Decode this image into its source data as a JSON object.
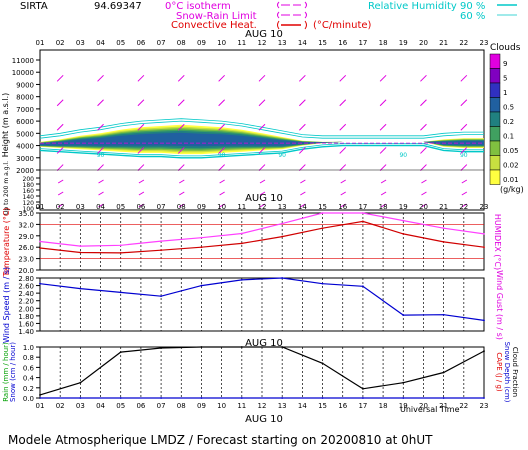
{
  "header": {
    "station": "SIRTA",
    "code": "94.69347",
    "isotherm_label": "0°C isotherm",
    "snowrain_label": "Snow-Rain Limit",
    "convective_label": "Convective Heat.",
    "unit_label": "(°C/minute)",
    "rh_label": "Relative Humidity",
    "rh_90": "90 %",
    "rh_60": "60 %",
    "colors": {
      "isotherm": "#e000e0",
      "rh": "#00c8c8",
      "convective": "#e00000"
    }
  },
  "footer": {
    "universal_time": "Universal Time",
    "model_line": "Modele Atmospherique LMDZ / Forecast starting on 20200810 at 0hUT"
  },
  "chart_data": [
    {
      "type": "heatmap",
      "name": "clouds",
      "date_label": "AUG 10",
      "x_ticks": [
        "01",
        "02",
        "03",
        "04",
        "05",
        "06",
        "07",
        "08",
        "09",
        "10",
        "11",
        "12",
        "13",
        "14",
        "15",
        "16",
        "17",
        "18",
        "19",
        "20",
        "21",
        "22",
        "23"
      ],
      "y_label": "Height (m a.s.l.)",
      "y_label_lower": "Up to 200 m a.g.l.",
      "y_ticks_upper": [
        11000,
        10000,
        9000,
        8000,
        7000,
        6000,
        5000,
        4000,
        3000,
        2000
      ],
      "y_ticks_lower": [
        200,
        180,
        160,
        140,
        120,
        100
      ],
      "legend_title": "Clouds",
      "legend_unit": "(g/kg)",
      "legend_levels": [
        "9",
        "5",
        "1",
        "0.5",
        "0.2",
        "0.1",
        "0.05",
        "0.02",
        "0.01"
      ],
      "legend_colors": [
        "#e000e0",
        "#8000c0",
        "#3030c0",
        "#2060a0",
        "#208080",
        "#40a060",
        "#80c040",
        "#c8e040",
        "#ffff40"
      ],
      "cloud_base_m": [
        3900,
        3800,
        3700,
        3600,
        3500,
        3400,
        3400,
        3300,
        3300,
        3400,
        3500,
        3600,
        3700,
        4000,
        4200,
        4300,
        4300,
        4300,
        4300,
        4300,
        3900,
        3800,
        3800
      ],
      "cloud_top_m": [
        4300,
        4500,
        4800,
        5000,
        5300,
        5500,
        5600,
        5700,
        5600,
        5500,
        5300,
        5000,
        4700,
        4400,
        4300,
        4300,
        4300,
        4300,
        4300,
        4300,
        4500,
        4600,
        4600
      ],
      "series_labels": [
        "90",
        "90",
        "90",
        "90",
        "90"
      ]
    },
    {
      "type": "line",
      "name": "temperature",
      "date_label": "AUG 10",
      "x_ticks": [
        "01",
        "02",
        "03",
        "04",
        "05",
        "06",
        "07",
        "08",
        "09",
        "10",
        "11",
        "12",
        "13",
        "14",
        "15",
        "16",
        "17",
        "18",
        "19",
        "20",
        "21",
        "22",
        "23"
      ],
      "ylabel": "Temperature (°C)",
      "ylabel_right": "HUMIDEX (°C)",
      "y_ticks": [
        20.0,
        23.0,
        26.0,
        29.0,
        32.0,
        35.0
      ],
      "ylim": [
        20.0,
        35.0
      ],
      "x": [
        1,
        3,
        5,
        7,
        9,
        11,
        13,
        15,
        17,
        19,
        21,
        23
      ],
      "series": [
        {
          "values": [
            25.8,
            24.6,
            24.5,
            25.2,
            26.0,
            27.0,
            28.8,
            31.0,
            32.8,
            29.5,
            27.4,
            26.0
          ],
          "color": "#d00000"
        },
        {
          "values": [
            27.5,
            26.3,
            26.5,
            27.6,
            28.5,
            29.6,
            32.2,
            35.0,
            36.0,
            33.0,
            31.0,
            29.5
          ],
          "color": "#ff40ff"
        }
      ]
    },
    {
      "type": "line",
      "name": "wind",
      "x_ticks": [
        "01",
        "02",
        "03",
        "04",
        "05",
        "06",
        "07",
        "08",
        "09",
        "10",
        "11",
        "12",
        "13",
        "14",
        "15",
        "16",
        "17",
        "18",
        "19",
        "20",
        "21",
        "22",
        "23"
      ],
      "ylabel": "Wind Speed (m / s)",
      "ylabel_right": "Wind Gust (m / s)",
      "y_ticks": [
        1.4,
        1.6,
        1.8,
        2.0,
        2.2,
        2.4,
        2.6,
        2.8
      ],
      "ylim": [
        1.4,
        2.8
      ],
      "x": [
        1,
        3,
        5,
        7,
        9,
        11,
        13,
        15,
        17,
        19,
        21,
        23
      ],
      "series": [
        {
          "values": [
            2.65,
            2.52,
            2.42,
            2.32,
            2.6,
            2.75,
            2.82,
            2.65,
            2.58,
            1.82,
            1.83,
            1.68
          ],
          "color": "#0000d0"
        }
      ]
    },
    {
      "type": "line",
      "name": "rain_cape",
      "date_label": "AUG 10",
      "x_ticks": [
        "01",
        "02",
        "03",
        "04",
        "05",
        "06",
        "07",
        "08",
        "09",
        "10",
        "11",
        "12",
        "13",
        "14",
        "15",
        "16",
        "17",
        "18",
        "19",
        "20",
        "21",
        "22",
        "23"
      ],
      "ylabel": "Rain (mm / hour)",
      "ylabel2": "Snow (cm / hour)",
      "ylabel_right": "CAPE (J / g)",
      "ylabel_right2": "Snow Depth (cm)",
      "ylabel_right3": "Cloud Fraction",
      "y_ticks": [
        0.0,
        0.2,
        0.4,
        0.6,
        0.8,
        1.0
      ],
      "ylim": [
        0.0,
        1.0
      ],
      "x": [
        1,
        3,
        5,
        7,
        9,
        11,
        13,
        15,
        17,
        19,
        21,
        23
      ],
      "series": [
        {
          "values": [
            0.06,
            0.3,
            0.9,
            0.98,
            1.0,
            1.0,
            1.0,
            0.68,
            0.18,
            0.3,
            0.5,
            0.92
          ],
          "color": "#000000"
        },
        {
          "values": [
            0,
            0,
            0,
            0,
            0,
            0,
            0,
            0,
            0,
            0,
            0,
            0
          ],
          "color": "#0000d0"
        }
      ]
    }
  ]
}
